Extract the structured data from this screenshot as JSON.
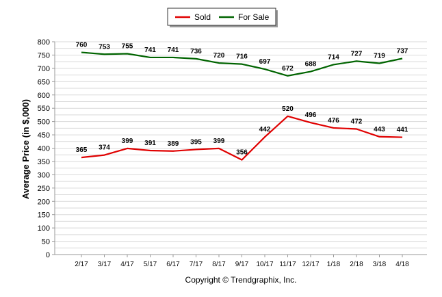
{
  "chart_data": {
    "type": "line",
    "ylabel": "Average Price (in $,000)",
    "xlabel": "",
    "ylim": [
      0,
      800
    ],
    "yticks": [
      0,
      25,
      50,
      75,
      100,
      125,
      150,
      175,
      200,
      225,
      250,
      275,
      300,
      325,
      350,
      375,
      400,
      425,
      450,
      475,
      500,
      525,
      550,
      575,
      600,
      625,
      650,
      675,
      700,
      725,
      750,
      775,
      800
    ],
    "ytick_labels": [
      "0",
      "50",
      "100",
      "150",
      "200",
      "250",
      "300",
      "350",
      "400",
      "450",
      "500",
      "550",
      "600",
      "650",
      "700",
      "750",
      "800"
    ],
    "grid": true,
    "legend_position": "top-center",
    "categories": [
      "2/17",
      "3/17",
      "4/17",
      "5/17",
      "6/17",
      "7/17",
      "8/17",
      "9/17",
      "10/17",
      "11/17",
      "12/17",
      "1/18",
      "2/18",
      "3/18",
      "4/18"
    ],
    "series": [
      {
        "name": "Sold",
        "color": "#e00000",
        "values": [
          365,
          374,
          399,
          391,
          389,
          395,
          399,
          356,
          442,
          520,
          496,
          476,
          472,
          443,
          441
        ],
        "labels": [
          "365",
          "374",
          "399",
          "391",
          "389",
          "395",
          "399",
          "356",
          "442",
          "520",
          "496",
          "476",
          "472",
          "443",
          "441"
        ]
      },
      {
        "name": "For Sale",
        "color": "#006400",
        "values": [
          760,
          753,
          755,
          741,
          741,
          736,
          720,
          716,
          697,
          672,
          688,
          714,
          727,
          719,
          737
        ],
        "labels": [
          "760",
          "753",
          "755",
          "741",
          "741",
          "736",
          "720",
          "716",
          "697",
          "672",
          "688",
          "714",
          "727",
          "719",
          "737"
        ]
      }
    ]
  },
  "footer": {
    "copyright": "Copyright © Trendgraphix, Inc."
  }
}
